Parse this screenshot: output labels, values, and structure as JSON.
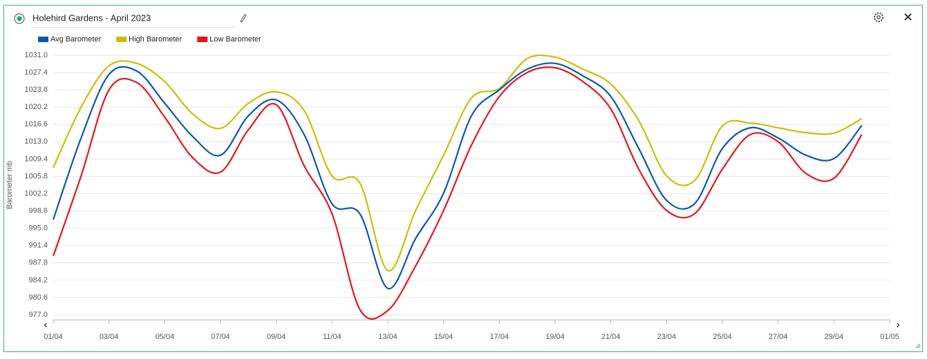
{
  "chart_data": {
    "type": "line",
    "title": "Holehird Gardens - April 2023",
    "y_label": "Barometer mb",
    "x": [
      1,
      2,
      3,
      4,
      5,
      6,
      7,
      8,
      9,
      10,
      11,
      12,
      13,
      14,
      15,
      16,
      17,
      18,
      19,
      20,
      21,
      22,
      23,
      24,
      25,
      26,
      27,
      28,
      29,
      30
    ],
    "series": [
      {
        "name": "Avg Barometer",
        "color": "#0b56b3",
        "values": [
          996.8,
          1013.8,
          1027.0,
          1027.7,
          1021.0,
          1014.1,
          1010.2,
          1018.4,
          1021.7,
          1014.5,
          1000.1,
          998.0,
          982.5,
          992.9,
          1002.3,
          1018.4,
          1023.8,
          1028.1,
          1029.3,
          1026.7,
          1022.4,
          1011.6,
          1000.8,
          1000.1,
          1011.6,
          1015.9,
          1013.8,
          1010.2,
          1009.5,
          1016.4
        ]
      },
      {
        "name": "High Barometer",
        "color": "#c9c000",
        "values": [
          1007.6,
          1020.2,
          1028.8,
          1029.3,
          1025.5,
          1018.8,
          1015.8,
          1021.0,
          1023.4,
          1019.5,
          1005.9,
          1004.4,
          986.2,
          998.7,
          1010.2,
          1022.1,
          1024.1,
          1030.3,
          1030.6,
          1028.1,
          1025.0,
          1017.4,
          1005.9,
          1004.9,
          1016.3,
          1016.9,
          1015.9,
          1014.9,
          1014.8,
          1017.8
        ]
      },
      {
        "name": "Low Barometer",
        "color": "#e8141b",
        "values": [
          989.2,
          1005.9,
          1023.8,
          1025.3,
          1018.1,
          1009.7,
          1006.7,
          1015.5,
          1020.7,
          1008.0,
          998.0,
          978.1,
          977.9,
          987.2,
          998.7,
          1012.3,
          1022.4,
          1027.4,
          1028.4,
          1025.5,
          1019.8,
          1007.3,
          998.7,
          998.0,
          1007.3,
          1014.5,
          1013.0,
          1006.4,
          1005.4,
          1014.5
        ]
      }
    ],
    "xlim": [
      1,
      31
    ],
    "xticks": [
      {
        "value": 1,
        "label": "01/04"
      },
      {
        "value": 3,
        "label": "03/04"
      },
      {
        "value": 5,
        "label": "05/04"
      },
      {
        "value": 7,
        "label": "07/04"
      },
      {
        "value": 9,
        "label": "09/04"
      },
      {
        "value": 11,
        "label": "11/04"
      },
      {
        "value": 13,
        "label": "13/04"
      },
      {
        "value": 15,
        "label": "15/04"
      },
      {
        "value": 17,
        "label": "17/04"
      },
      {
        "value": 19,
        "label": "19/04"
      },
      {
        "value": 21,
        "label": "21/04"
      },
      {
        "value": 23,
        "label": "23/04"
      },
      {
        "value": 25,
        "label": "25/04"
      },
      {
        "value": 27,
        "label": "27/04"
      },
      {
        "value": 29,
        "label": "29/04"
      },
      {
        "value": 31,
        "label": "01/05"
      }
    ],
    "ylim": [
      977.0,
      1031.0
    ],
    "yticks": [
      {
        "value": 977.0,
        "label": "977.0"
      },
      980.6,
      984.2,
      987.8,
      991.4,
      {
        "value": 995.0,
        "label": "995.0"
      },
      998.6,
      1002.2,
      1005.8,
      1009.4,
      {
        "value": 1013.0,
        "label": "1013.0"
      },
      1016.6,
      1020.2,
      1023.8,
      1027.4,
      {
        "value": 1031.0,
        "label": "1031.0"
      }
    ],
    "grid": true,
    "legend": "top-left"
  }
}
